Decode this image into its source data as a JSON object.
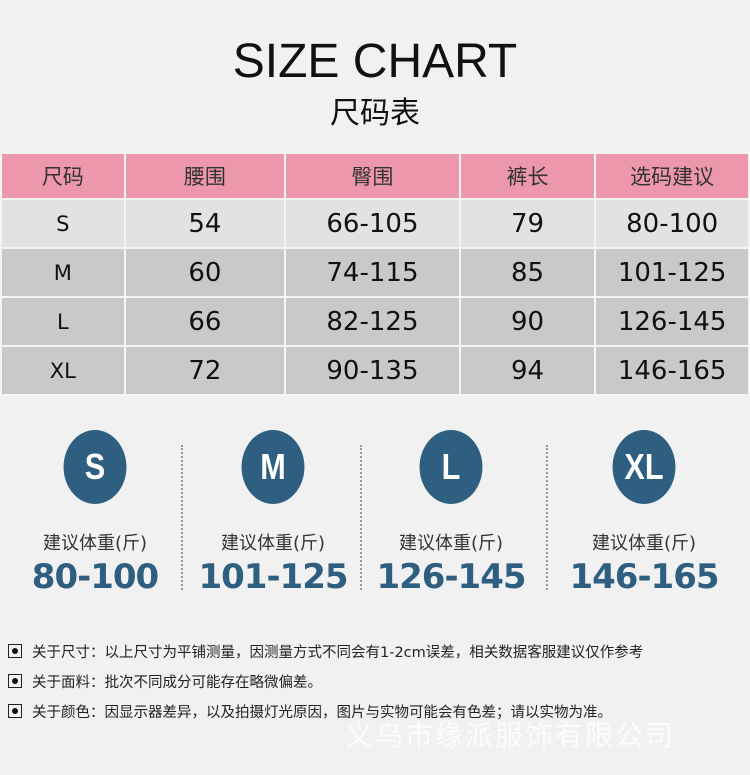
{
  "title": "SIZE CHART",
  "subtitle": "尺码表",
  "table": {
    "headers": [
      "尺码",
      "腰围",
      "臀围",
      "裤长",
      "选码建议"
    ],
    "rows": [
      [
        "S",
        "54",
        "66-105",
        "79",
        "80-100"
      ],
      [
        "M",
        "60",
        "74-115",
        "85",
        "101-125"
      ],
      [
        "L",
        "66",
        "82-125",
        "90",
        "126-145"
      ],
      [
        "XL",
        "72",
        "90-135",
        "94",
        "146-165"
      ]
    ]
  },
  "weights": {
    "label": "建议体重(斤)",
    "items": [
      {
        "size": "S",
        "range": "80-100"
      },
      {
        "size": "M",
        "range": "101-125"
      },
      {
        "size": "L",
        "range": "126-145"
      },
      {
        "size": "XL",
        "range": "146-165"
      }
    ]
  },
  "notes": [
    "关于尺寸：以上尺寸为平铺测量，因测量方式不同会有1-2cm误差，相关数据客服建议仅作参考",
    "关于面料：批次不同成分可能存在略微偏差。",
    "关于颜色：因显示器差异，以及拍摄灯光原因，图片与实物可能会有色差；请以实物为准。"
  ],
  "watermark": "义乌市缘派服饰有限公司",
  "colors": {
    "header_pink": "#ec97ab",
    "accent_blue": "#2e5e80"
  }
}
